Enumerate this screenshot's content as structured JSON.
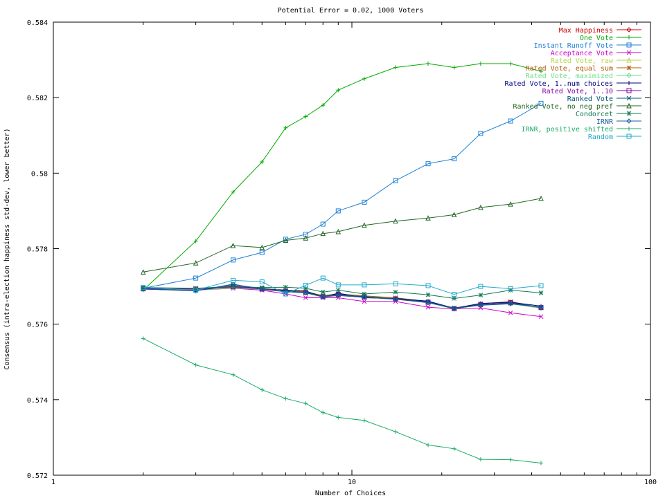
{
  "chart_data": {
    "type": "line",
    "title": "Potential Error = 0.02, 1000 Voters",
    "xlabel": "Number of Choices",
    "ylabel": "Consensus (intra-election happiness std-dev, lower better)",
    "xscale": "log",
    "xlim": [
      1,
      100
    ],
    "ylim": [
      0.572,
      0.584
    ],
    "x_ticks": [
      "1",
      "10",
      "100"
    ],
    "y_ticks": [
      "0.572",
      "0.574",
      "0.576",
      "0.578",
      "0.58",
      "0.582",
      "0.584"
    ],
    "legend_position": "top-right",
    "grid": false,
    "x": [
      2,
      3,
      4,
      5,
      6,
      7,
      8,
      9,
      11,
      14,
      18,
      22,
      27,
      34,
      43
    ],
    "series": [
      {
        "name": "Max Happiness",
        "color": "#cc0000",
        "marker": "diamond",
        "values": [
          0.57695,
          0.57692,
          0.57698,
          0.57694,
          0.57688,
          0.57684,
          0.57672,
          0.57678,
          0.57672,
          0.57668,
          0.57658,
          0.57642,
          0.57652,
          0.57655,
          0.57643
        ]
      },
      {
        "name": "One Vote",
        "color": "#00aa00",
        "marker": "plus",
        "values": [
          0.5769,
          0.5782,
          0.5795,
          0.5803,
          0.5812,
          0.5815,
          0.5818,
          0.5822,
          0.5825,
          0.5828,
          0.5829,
          0.5828,
          0.5829,
          0.5829,
          0.5827
        ]
      },
      {
        "name": "Instant Runoff Vote",
        "color": "#1f7fd6",
        "marker": "square",
        "values": [
          0.57695,
          0.57722,
          0.5777,
          0.5779,
          0.57825,
          0.57838,
          0.57865,
          0.579,
          0.57923,
          0.5798,
          0.58025,
          0.58038,
          0.58105,
          0.58138,
          0.58185
        ]
      },
      {
        "name": "Acceptance Vote",
        "color": "#cc00cc",
        "marker": "x",
        "values": [
          0.57695,
          0.5769,
          0.57695,
          0.5769,
          0.5768,
          0.5767,
          0.5767,
          0.5767,
          0.5766,
          0.5766,
          0.57645,
          0.5764,
          0.57643,
          0.5763,
          0.5762
        ]
      },
      {
        "name": "Rated Vote, raw",
        "color": "#b8d64a",
        "marker": "triangle",
        "values": [
          0.57693,
          0.57692,
          0.57698,
          0.57693,
          0.57688,
          0.57685,
          0.57674,
          0.57678,
          0.57673,
          0.57668,
          0.57659,
          0.57642,
          0.57652,
          0.57656,
          0.57644
        ]
      },
      {
        "name": "Rated Vote, equal sum",
        "color": "#b05a00",
        "marker": "star",
        "values": [
          0.57694,
          0.57694,
          0.57698,
          0.57695,
          0.5769,
          0.57686,
          0.57676,
          0.5768,
          0.57675,
          0.5767,
          0.5766,
          0.57643,
          0.57654,
          0.5766,
          0.57643
        ]
      },
      {
        "name": "Rated Vote, maximized",
        "color": "#66dd88",
        "marker": "diamond",
        "values": [
          0.57692,
          0.5769,
          0.57696,
          0.57692,
          0.57687,
          0.57683,
          0.57672,
          0.57677,
          0.57671,
          0.57666,
          0.57657,
          0.5764,
          0.57651,
          0.57654,
          0.57642
        ]
      },
      {
        "name": "Rated Vote, 1..num choices",
        "color": "#000080",
        "marker": "plus",
        "values": [
          0.57693,
          0.57689,
          0.57702,
          0.57693,
          0.5769,
          0.57688,
          0.57672,
          0.57682,
          0.5767,
          0.57668,
          0.57661,
          0.57642,
          0.57655,
          0.57658,
          0.57648
        ]
      },
      {
        "name": "Rated Vote, 1..10",
        "color": "#8800aa",
        "marker": "square",
        "values": [
          0.57694,
          0.57693,
          0.57699,
          0.57693,
          0.57687,
          0.57684,
          0.57673,
          0.57679,
          0.57672,
          0.57667,
          0.57658,
          0.57641,
          0.57652,
          0.57657,
          0.57644
        ]
      },
      {
        "name": "Ranked Vote",
        "color": "#005577",
        "marker": "x",
        "values": [
          0.57693,
          0.57689,
          0.57705,
          0.57694,
          0.57688,
          0.57684,
          0.57674,
          0.57678,
          0.57673,
          0.57667,
          0.57659,
          0.57642,
          0.57652,
          0.57656,
          0.57645
        ]
      },
      {
        "name": "Ranked Vote, no neg pref",
        "color": "#226622",
        "marker": "triangle",
        "values": [
          0.57738,
          0.57762,
          0.57808,
          0.57803,
          0.57822,
          0.57828,
          0.5784,
          0.57845,
          0.57862,
          0.57873,
          0.57881,
          0.5789,
          0.57909,
          0.57918,
          0.57933
        ]
      },
      {
        "name": "Condorcet",
        "color": "#117755",
        "marker": "star",
        "values": [
          0.57697,
          0.57695,
          0.577,
          0.57697,
          0.57698,
          0.57695,
          0.57685,
          0.5769,
          0.5768,
          0.57685,
          0.57678,
          0.57668,
          0.57677,
          0.5769,
          0.57683
        ]
      },
      {
        "name": "IRNR",
        "color": "#1a5a9a",
        "marker": "diamond",
        "values": [
          0.57693,
          0.57688,
          0.57706,
          0.57692,
          0.57686,
          0.57683,
          0.57672,
          0.57676,
          0.57671,
          0.57666,
          0.57657,
          0.57642,
          0.5765,
          0.57654,
          0.57645
        ]
      },
      {
        "name": "IRNR, positive shifted",
        "color": "#1aaa66",
        "marker": "plus",
        "values": [
          0.57562,
          0.57492,
          0.57466,
          0.57426,
          0.57403,
          0.5739,
          0.57366,
          0.57353,
          0.57345,
          0.57315,
          0.5728,
          0.5727,
          0.57242,
          0.57241,
          0.57232
        ]
      },
      {
        "name": "Random",
        "color": "#22aacc",
        "marker": "square",
        "values": [
          0.57697,
          0.5769,
          0.57716,
          0.57712,
          0.5768,
          0.57703,
          0.57722,
          0.57704,
          0.57704,
          0.57707,
          0.57702,
          0.57679,
          0.577,
          0.57694,
          0.57702
        ]
      }
    ]
  }
}
